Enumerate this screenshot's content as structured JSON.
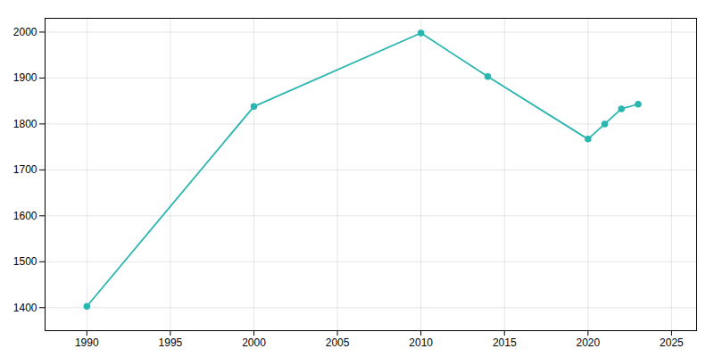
{
  "chart_data": {
    "type": "line",
    "x": [
      1990,
      2000,
      2010,
      2014,
      2020,
      2021,
      2022,
      2023
    ],
    "values": [
      1403,
      1838,
      1998,
      1903,
      1767,
      1800,
      1833,
      1843
    ],
    "color": "#2ab5b0",
    "marker": "circle",
    "xlim": [
      1987.5,
      2026.5
    ],
    "ylim": [
      1350,
      2030
    ],
    "xticks": [
      1990,
      1995,
      2000,
      2005,
      2010,
      2015,
      2020,
      2025
    ],
    "yticks": [
      1400,
      1500,
      1600,
      1700,
      1800,
      1900,
      2000
    ],
    "grid": true
  }
}
